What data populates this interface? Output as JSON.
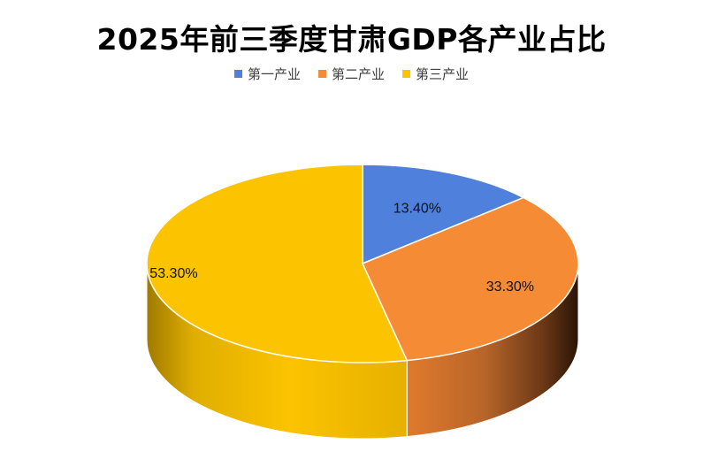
{
  "chart_data": {
    "type": "pie",
    "title": "2025年前三季度甘肃GDP各产业占比",
    "legend_position": "top",
    "categories": [
      "第一产业",
      "第二产业",
      "第三产业"
    ],
    "values": [
      13.4,
      33.3,
      53.3
    ],
    "data_labels": [
      "13.40%",
      "33.30%",
      "53.30%"
    ],
    "colors": [
      "#4f80db",
      "#f58b35",
      "#fbc300"
    ]
  }
}
